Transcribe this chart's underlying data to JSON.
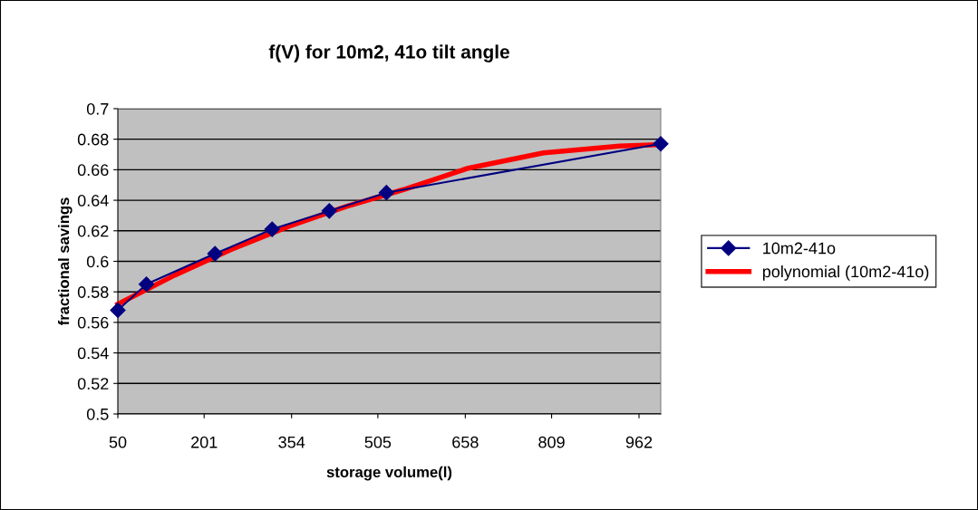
{
  "chart_data": {
    "type": "line",
    "title": "f(V) for 10m2, 41o tilt angle",
    "xlabel": "storage volume(l)",
    "ylabel": "fractional savings",
    "xlim": [
      50,
      1000
    ],
    "xticks": [
      50,
      201,
      354,
      505,
      658,
      809,
      962
    ],
    "ylim": [
      0.5,
      0.7
    ],
    "yticks": [
      0.5,
      0.52,
      0.54,
      0.56,
      0.58,
      0.6,
      0.62,
      0.64,
      0.66,
      0.68,
      0.7
    ],
    "grid": "y",
    "legend": "right",
    "marker": "diamond",
    "line_style": "solid",
    "series": [
      {
        "name": "10m2-41o",
        "color": "#000080",
        "x": [
          50,
          100,
          220,
          320,
          420,
          520,
          1000
        ],
        "values": [
          0.568,
          0.585,
          0.605,
          0.621,
          0.633,
          0.645,
          0.677
        ]
      },
      {
        "name": "polynomial (10m2-41o)",
        "color": "#ff0000",
        "type": "line",
        "marker": "none",
        "x": [
          50,
          150,
          250,
          350,
          450,
          550,
          663,
          795,
          928,
          1000
        ],
        "values": [
          0.572,
          0.591,
          0.608,
          0.623,
          0.636,
          0.647,
          0.661,
          0.671,
          0.6755,
          0.6765
        ]
      }
    ]
  }
}
